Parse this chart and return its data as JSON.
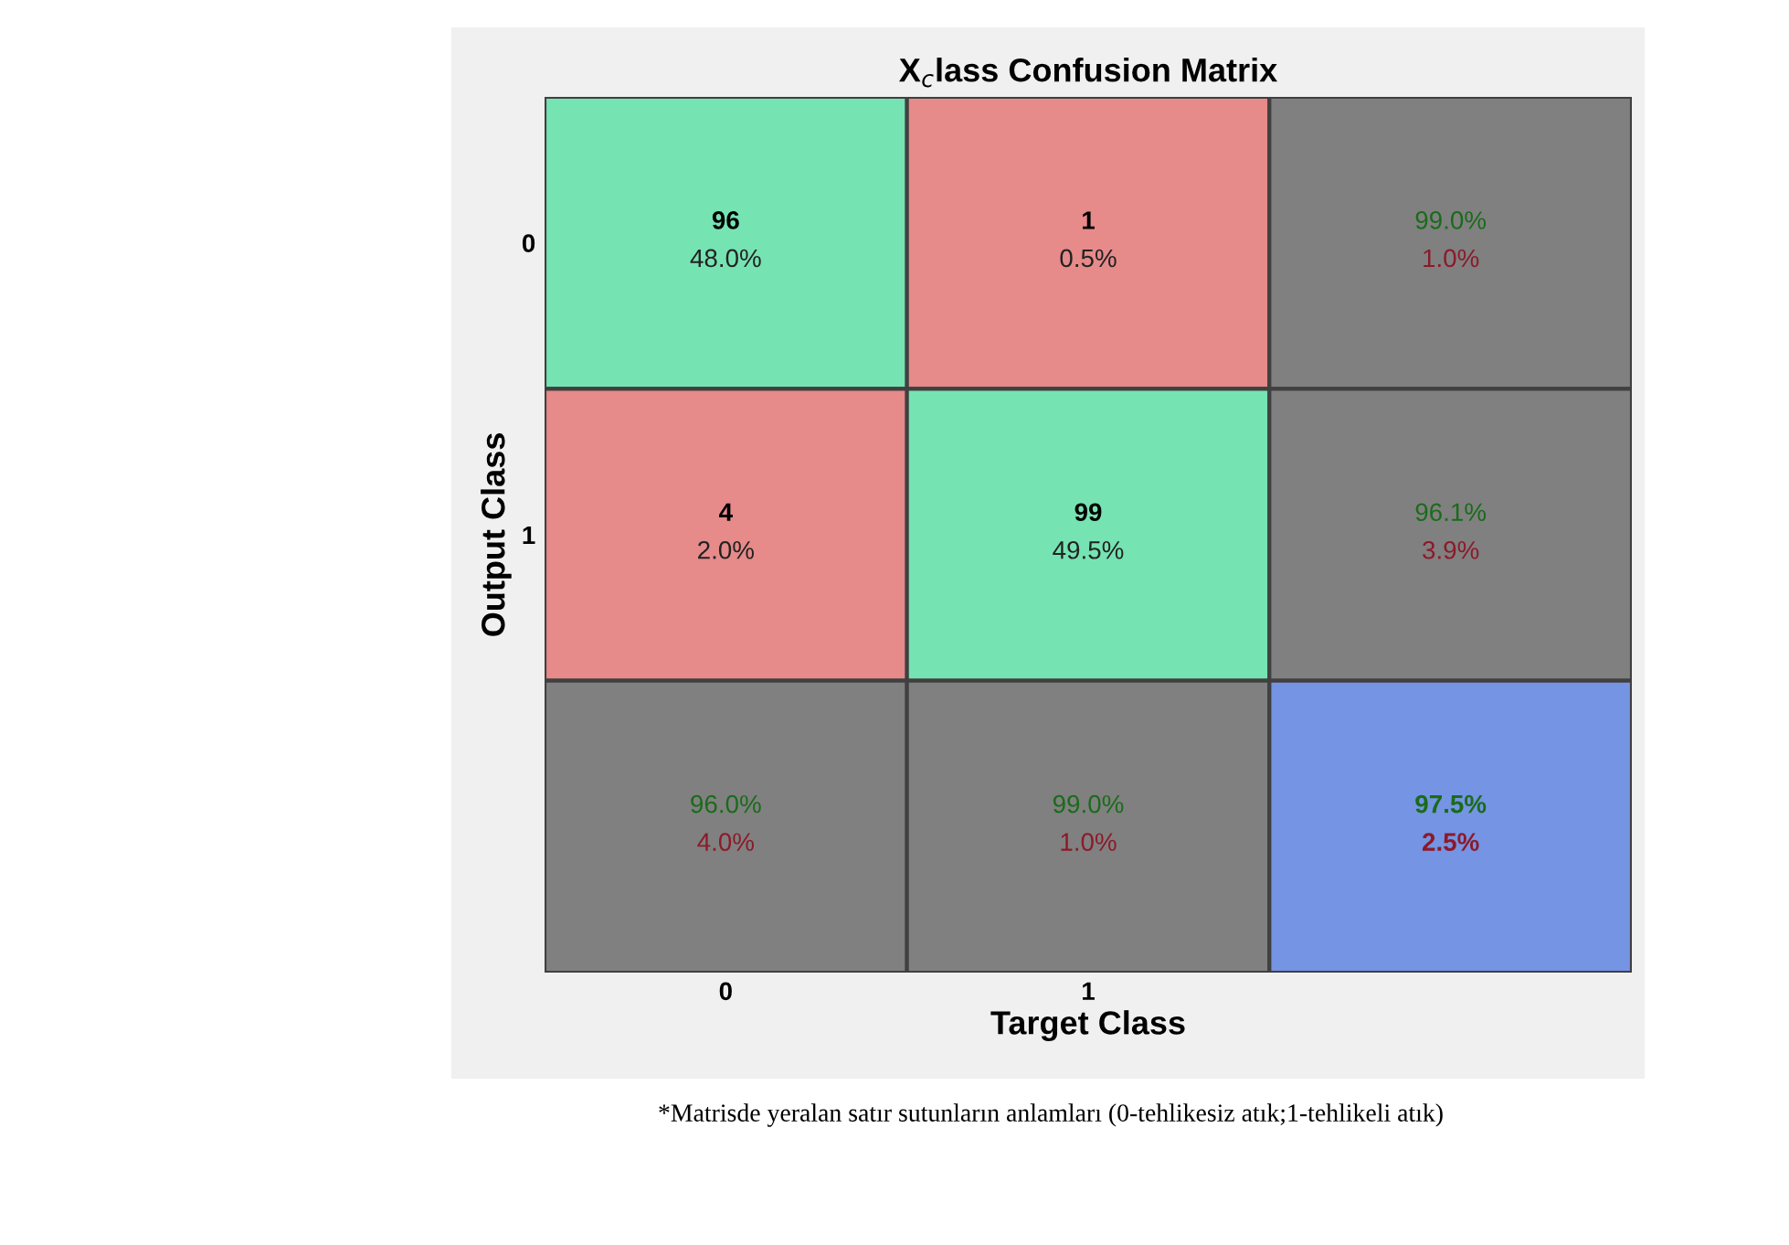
{
  "chart_data": {
    "type": "heatmap",
    "title": "X$_{c}$lass Confusion Matrix",
    "xlabel": "Target Class",
    "ylabel": "Output Class",
    "data_labels": true,
    "categories": [
      "0",
      "1",
      null
    ],
    "y_categories": [
      "0",
      "1",
      null
    ],
    "cells": [
      [
        96,
        1,
        99.0
      ],
      [
        4,
        99,
        96.1
      ],
      [
        96.0,
        99.0,
        97.5
      ]
    ],
    "cell_labels": [
      [
        "96",
        "1",
        "99.0%"
      ],
      [
        "4",
        "99",
        "96.1%"
      ],
      [
        "96.0%",
        "99.0%",
        "97.5%"
      ]
    ],
    "colors": [
      [
        "#76e3b3",
        "#e68a8a",
        "#808080"
      ],
      [
        "#e68a8a",
        "#76e3b3",
        "#808080"
      ],
      [
        "#808080",
        "#808080",
        "#7594e3"
      ]
    ],
    "annotations": [
      "*Matrisde yeralan satır sutunların anlamları (0-tehlikesiz atık;1-tehlikeli atık)",
      "48.0%",
      "0.5%",
      "1.0%",
      "2.0%",
      "49.5%",
      "3.9%",
      "4.0%",
      "1.0%",
      "2.5%"
    ]
  }
}
